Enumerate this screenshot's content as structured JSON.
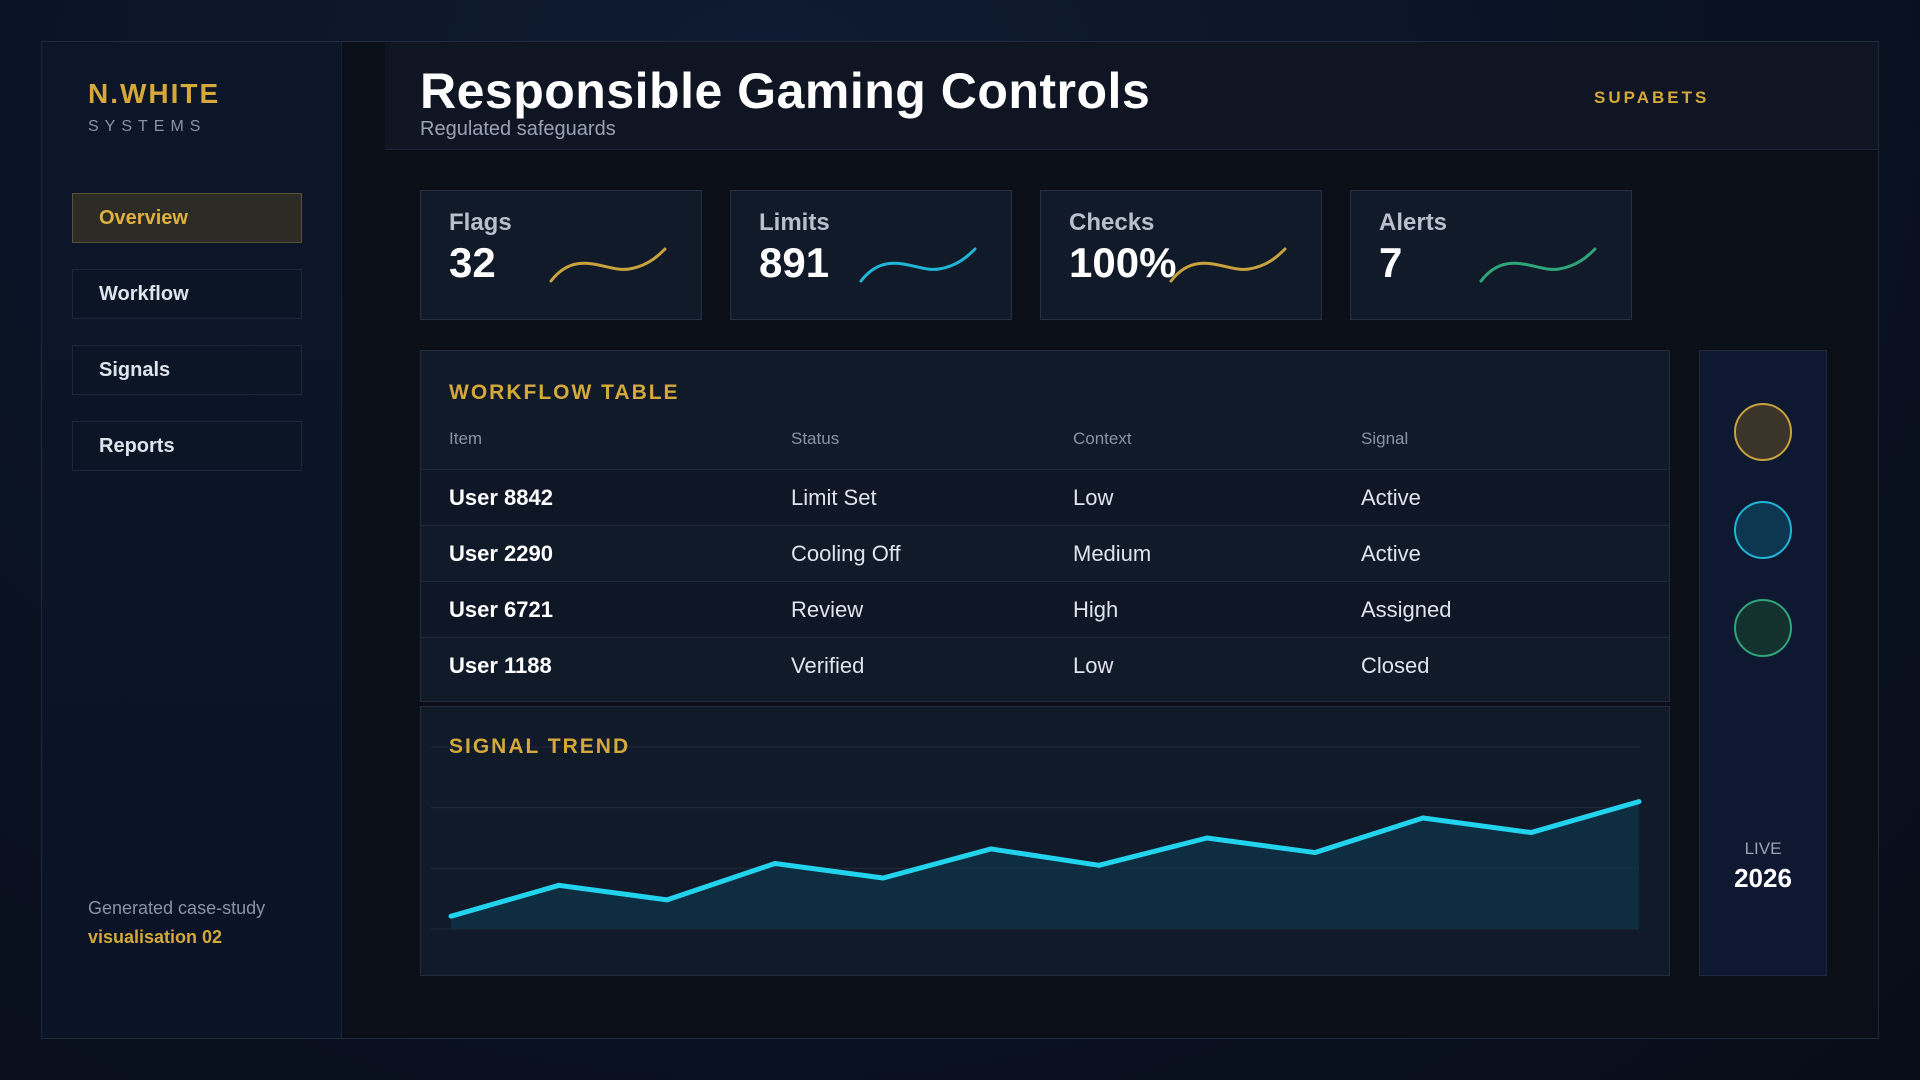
{
  "sidebar": {
    "brand_name": "N.WHITE",
    "brand_sub": "SYSTEMS",
    "items": [
      {
        "label": "Overview",
        "active": true
      },
      {
        "label": "Workflow",
        "active": false
      },
      {
        "label": "Signals",
        "active": false
      },
      {
        "label": "Reports",
        "active": false
      }
    ],
    "footer_line1": "Generated case-study",
    "footer_line2": "visualisation 02"
  },
  "header": {
    "title": "Responsible Gaming Controls",
    "subtitle": "Regulated safeguards",
    "brand": "SUPABETS"
  },
  "kpis": [
    {
      "label": "Flags",
      "value": "32",
      "color": "#c9a23e"
    },
    {
      "label": "Limits",
      "value": "891",
      "color": "#1fb6d6"
    },
    {
      "label": "Checks",
      "value": "100%",
      "color": "#c9a23e"
    },
    {
      "label": "Alerts",
      "value": "7",
      "color": "#2fa57a"
    }
  ],
  "table": {
    "title": "WORKFLOW TABLE",
    "columns": [
      "Item",
      "Status",
      "Context",
      "Signal"
    ],
    "rows": [
      [
        "User 8842",
        "Limit Set",
        "Low",
        "Active"
      ],
      [
        "User 2290",
        "Cooling Off",
        "Medium",
        "Active"
      ],
      [
        "User 6721",
        "Review",
        "High",
        "Assigned"
      ],
      [
        "User 1188",
        "Verified",
        "Low",
        "Closed"
      ]
    ]
  },
  "trend": {
    "title": "SIGNAL TREND",
    "color": "#22d3ee"
  },
  "chart_data": {
    "type": "area",
    "x": [
      1,
      2,
      3,
      4,
      5,
      6,
      7,
      8,
      9,
      10,
      11,
      12
    ],
    "values": [
      7,
      24,
      16,
      36,
      28,
      44,
      35,
      50,
      42,
      61,
      53,
      70
    ],
    "ylim": [
      0,
      100
    ],
    "grid": true
  },
  "status": {
    "dots": [
      {
        "fill": "#3a3528",
        "stroke": "#c9a23e"
      },
      {
        "fill": "#0d3650",
        "stroke": "#1fb6d6"
      },
      {
        "fill": "#13322f",
        "stroke": "#2fa57a"
      }
    ],
    "live_label": "LIVE",
    "year": "2026"
  }
}
